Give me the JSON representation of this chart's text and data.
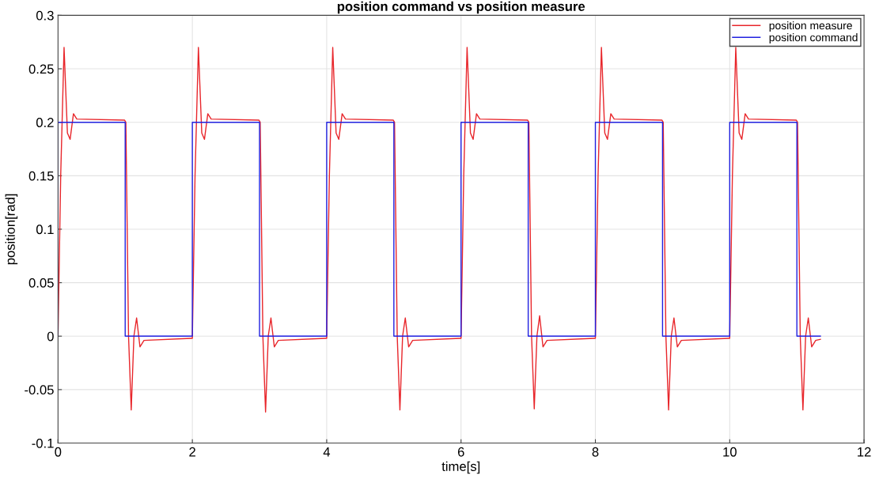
{
  "chart_data": {
    "type": "line",
    "title": "position command vs position measure",
    "xlabel": "time[s]",
    "ylabel": "position[rad]",
    "xlim": [
      0,
      12
    ],
    "xticks": [
      0,
      2,
      4,
      6,
      8,
      10,
      12
    ],
    "ylim": [
      -0.1,
      0.3
    ],
    "yticks": [
      -0.1,
      -0.05,
      0,
      0.05,
      0.1,
      0.15,
      0.2,
      0.25,
      0.3
    ],
    "grid": true,
    "legend": "top right",
    "line_style": "solid",
    "marker": "none",
    "series": [
      {
        "name": "position measure",
        "color": "#e8262b",
        "x": [
          0,
          0.04,
          0.09,
          0.14,
          0.18,
          0.23,
          0.28,
          0.99,
          1.01,
          1.05,
          1.09,
          1.13,
          1.17,
          1.22,
          1.28,
          1.99,
          2.0,
          2.04,
          2.09,
          2.14,
          2.18,
          2.23,
          2.28,
          2.99,
          3.01,
          3.05,
          3.09,
          3.13,
          3.17,
          3.22,
          3.28,
          3.99,
          4.0,
          4.04,
          4.09,
          4.14,
          4.18,
          4.23,
          4.28,
          4.99,
          5.01,
          5.05,
          5.09,
          5.13,
          5.17,
          5.22,
          5.28,
          5.99,
          6.0,
          6.04,
          6.09,
          6.14,
          6.18,
          6.23,
          6.28,
          6.99,
          7.01,
          7.05,
          7.09,
          7.13,
          7.17,
          7.22,
          7.28,
          7.99,
          8.0,
          8.04,
          8.09,
          8.14,
          8.18,
          8.23,
          8.28,
          8.99,
          9.01,
          9.05,
          9.09,
          9.13,
          9.17,
          9.22,
          9.28,
          9.99,
          10.0,
          10.04,
          10.09,
          10.14,
          10.18,
          10.23,
          10.28,
          10.99,
          11.01,
          11.05,
          11.09,
          11.13,
          11.17,
          11.22,
          11.28,
          11.35
        ],
        "values": [
          0,
          0.15,
          0.27,
          0.19,
          0.184,
          0.208,
          0.203,
          0.202,
          0.2,
          0,
          -0.069,
          0,
          0.017,
          -0.01,
          -0.004,
          -0.002,
          -0.002,
          0.15,
          0.27,
          0.19,
          0.184,
          0.208,
          0.203,
          0.202,
          0.2,
          0,
          -0.071,
          0,
          0.017,
          -0.01,
          -0.004,
          -0.002,
          -0.002,
          0.15,
          0.27,
          0.19,
          0.184,
          0.208,
          0.203,
          0.202,
          0.2,
          0,
          -0.069,
          0,
          0.017,
          -0.01,
          -0.004,
          -0.002,
          -0.002,
          0.15,
          0.27,
          0.19,
          0.184,
          0.208,
          0.203,
          0.202,
          0.2,
          0,
          -0.068,
          0,
          0.019,
          -0.01,
          -0.004,
          -0.002,
          -0.002,
          0.15,
          0.27,
          0.19,
          0.184,
          0.208,
          0.203,
          0.202,
          0.2,
          0,
          -0.069,
          0,
          0.017,
          -0.01,
          -0.004,
          -0.002,
          -0.002,
          0.15,
          0.27,
          0.19,
          0.184,
          0.208,
          0.203,
          0.202,
          0.2,
          0,
          -0.069,
          0,
          0.017,
          -0.01,
          -0.004,
          -0.003
        ]
      },
      {
        "name": "position command",
        "color": "#2020e0",
        "x": [
          0,
          0,
          1,
          1,
          2,
          2,
          3,
          3,
          4,
          4,
          5,
          5,
          6,
          6,
          7,
          7,
          8,
          8,
          9,
          9,
          10,
          10,
          11,
          11,
          11.35
        ],
        "values": [
          0,
          0.2,
          0.2,
          0,
          0,
          0.2,
          0.2,
          0,
          0,
          0.2,
          0.2,
          0,
          0,
          0.2,
          0.2,
          0,
          0,
          0.2,
          0.2,
          0,
          0,
          0.2,
          0.2,
          0,
          0
        ]
      }
    ]
  }
}
